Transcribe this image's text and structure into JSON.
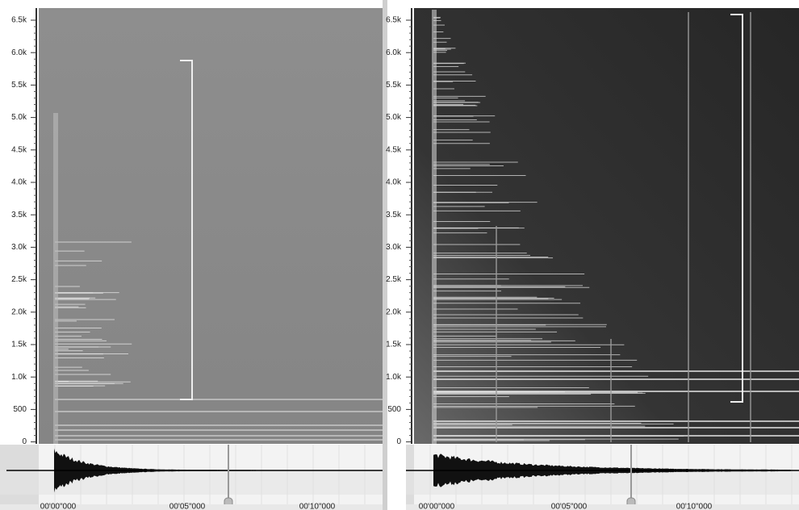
{
  "panels": [
    {
      "y_axis_labels": [
        "6.5k",
        "6.0k",
        "5.5k",
        "5.0k",
        "4.5k",
        "4.0k",
        "3.5k",
        "3.0k",
        "2.5k",
        "2.0k",
        "1.5k",
        "1.0k",
        "500",
        "0"
      ],
      "time_labels": [
        "00'00\"000",
        "00'05\"000",
        "00'10\"000"
      ]
    },
    {
      "y_axis_labels": [
        "6.5k",
        "6.0k",
        "5.5k",
        "5.0k",
        "4.5k",
        "4.0k",
        "3.5k",
        "3.0k",
        "2.5k",
        "2.0k",
        "1.5k",
        "1.0k",
        "500",
        "0"
      ],
      "time_labels": [
        "00'00\"000",
        "00'05\"000",
        "00'10\"000"
      ]
    }
  ]
}
